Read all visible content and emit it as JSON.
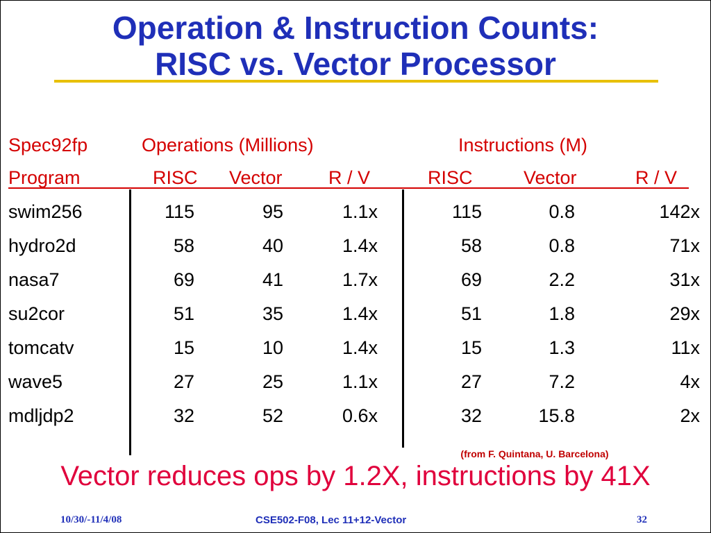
{
  "title": {
    "line1": "Operation & Instruction Counts:",
    "line2": "RISC vs. Vector Processor"
  },
  "header": {
    "row1": {
      "spec": "Spec92fp",
      "operations": "Operations (Millions)",
      "instructions": "Instructions (M)"
    },
    "row2": {
      "program": "Program",
      "ops_risc": "RISC",
      "ops_vector": "Vector",
      "ops_rv": "R / V",
      "inst_risc": "RISC",
      "inst_vector": "Vector",
      "inst_rv": "R / V"
    }
  },
  "rows": [
    {
      "program": "swim256",
      "ops_risc": "115",
      "ops_vector": "95",
      "ops_rv": "1.1x",
      "inst_risc": "115",
      "inst_vector": "0.8",
      "inst_rv": "142x"
    },
    {
      "program": "hydro2d",
      "ops_risc": "58",
      "ops_vector": "40",
      "ops_rv": "1.4x",
      "inst_risc": "58",
      "inst_vector": "0.8",
      "inst_rv": "71x"
    },
    {
      "program": "nasa7",
      "ops_risc": "69",
      "ops_vector": "41",
      "ops_rv": "1.7x",
      "inst_risc": "69",
      "inst_vector": "2.2",
      "inst_rv": "31x"
    },
    {
      "program": "su2cor",
      "ops_risc": "51",
      "ops_vector": "35",
      "ops_rv": "1.4x",
      "inst_risc": "51",
      "inst_vector": "1.8",
      "inst_rv": "29x"
    },
    {
      "program": "tomcatv",
      "ops_risc": "15",
      "ops_vector": "10",
      "ops_rv": "1.4x",
      "inst_risc": "15",
      "inst_vector": "1.3",
      "inst_rv": "11x"
    },
    {
      "program": "wave5",
      "ops_risc": "27",
      "ops_vector": "25",
      "ops_rv": "1.1x",
      "inst_risc": "27",
      "inst_vector": "7.2",
      "inst_rv": "4x"
    },
    {
      "program": "mdljdp2",
      "ops_risc": "32",
      "ops_vector": "52",
      "ops_rv": "0.6x",
      "inst_risc": "32",
      "inst_vector": "15.8",
      "inst_rv": "2x"
    }
  ],
  "source_note": "(from F. Quintana, U. Barcelona)",
  "conclusion": "Vector reduces ops by 1.2X, instructions by 41X",
  "footer": {
    "date": "10/30/-11/4/08",
    "course": "CSE502-F08, Lec 11+12-Vector",
    "page": "32"
  },
  "colors": {
    "title": "#1f2fb8",
    "title_rule": "#e8c000",
    "header": "#d40000",
    "conclusion": "#e0003c",
    "footer": "#1f2fb8"
  }
}
